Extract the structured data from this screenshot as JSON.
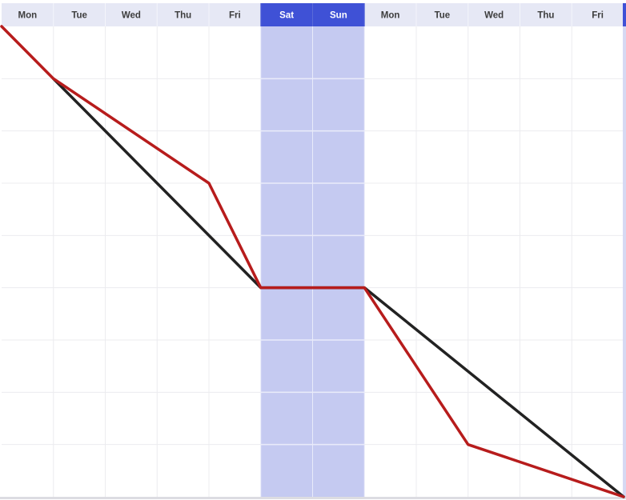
{
  "chart_data": {
    "type": "line",
    "categories": [
      "Mon",
      "Tue",
      "Wed",
      "Thu",
      "Fri",
      "Sat",
      "Sun",
      "Mon",
      "Tue",
      "Wed",
      "Thu",
      "Fri"
    ],
    "weekend_indices": [
      5,
      6
    ],
    "y_gridlines": 9,
    "ylim": [
      0,
      9
    ],
    "grid": true,
    "series": [
      {
        "color": "#222222",
        "points": [
          [
            1,
            8
          ],
          [
            5,
            4
          ],
          [
            7,
            4
          ],
          [
            12,
            0
          ]
        ]
      },
      {
        "color": "#b71c1c",
        "points": [
          [
            0,
            9
          ],
          [
            1,
            8
          ],
          [
            4,
            6
          ],
          [
            5,
            4
          ],
          [
            7,
            4
          ],
          [
            9,
            1
          ],
          [
            12,
            0
          ]
        ]
      }
    ]
  },
  "colors": {
    "header_bg": "#e6e8f5",
    "header_weekend_bg": "#3f51d6",
    "header_text": "#3d3d3d",
    "header_weekend_text": "#ffffff",
    "weekend_fill": "#c5caf1",
    "grid_line": "#ececef",
    "weekend_grid_line": "#e9ebfa"
  }
}
